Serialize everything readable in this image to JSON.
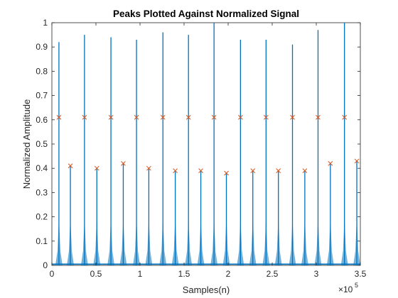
{
  "chart_data": {
    "type": "line",
    "title": "Peaks Plotted Against Normalized Signal",
    "xlabel": "Samples(n)",
    "ylabel": "Normalized Amplitude",
    "x_exponent_label": "×10",
    "x_exponent_power": "5",
    "xlim": [
      0,
      3.5
    ],
    "ylim": [
      0,
      1
    ],
    "x_scale_factor": 100000,
    "x_ticks": [
      0,
      0.5,
      1,
      1.5,
      2,
      2.5,
      3,
      3.5
    ],
    "x_tick_labels": [
      "0",
      "0.5",
      "1",
      "1.5",
      "2",
      "2.5",
      "3",
      "3.5"
    ],
    "y_ticks": [
      0,
      0.1,
      0.2,
      0.3,
      0.4,
      0.5,
      0.6,
      0.7,
      0.8,
      0.9,
      1
    ],
    "y_tick_labels": [
      "0",
      "0.1",
      "0.2",
      "0.3",
      "0.4",
      "0.5",
      "0.6",
      "0.7",
      "0.8",
      "0.9",
      "1"
    ],
    "grid": false,
    "series": [
      {
        "kind": "signal",
        "color": "#0072BD",
        "spikes": [
          {
            "x": 0.08,
            "y": 0.92
          },
          {
            "x": 0.21,
            "y": 0.41
          },
          {
            "x": 0.37,
            "y": 0.95
          },
          {
            "x": 0.51,
            "y": 0.4
          },
          {
            "x": 0.67,
            "y": 0.94
          },
          {
            "x": 0.81,
            "y": 0.42
          },
          {
            "x": 0.96,
            "y": 0.93
          },
          {
            "x": 1.1,
            "y": 0.4
          },
          {
            "x": 1.26,
            "y": 0.96
          },
          {
            "x": 1.4,
            "y": 0.39
          },
          {
            "x": 1.55,
            "y": 0.95
          },
          {
            "x": 1.69,
            "y": 0.39
          },
          {
            "x": 1.84,
            "y": 1.0
          },
          {
            "x": 1.98,
            "y": 0.38
          },
          {
            "x": 2.14,
            "y": 0.93
          },
          {
            "x": 2.28,
            "y": 0.39
          },
          {
            "x": 2.43,
            "y": 0.93
          },
          {
            "x": 2.57,
            "y": 0.39
          },
          {
            "x": 2.73,
            "y": 0.91
          },
          {
            "x": 2.87,
            "y": 0.39
          },
          {
            "x": 3.02,
            "y": 0.97
          },
          {
            "x": 3.16,
            "y": 0.42
          },
          {
            "x": 3.32,
            "y": 1.0
          },
          {
            "x": 3.46,
            "y": 0.43
          }
        ]
      },
      {
        "kind": "peaks",
        "marker": "x",
        "color": "#D95319",
        "points": [
          {
            "x": 0.08,
            "y": 0.61
          },
          {
            "x": 0.21,
            "y": 0.41
          },
          {
            "x": 0.37,
            "y": 0.61
          },
          {
            "x": 0.51,
            "y": 0.4
          },
          {
            "x": 0.67,
            "y": 0.61
          },
          {
            "x": 0.81,
            "y": 0.42
          },
          {
            "x": 0.96,
            "y": 0.61
          },
          {
            "x": 1.1,
            "y": 0.4
          },
          {
            "x": 1.26,
            "y": 0.61
          },
          {
            "x": 1.4,
            "y": 0.39
          },
          {
            "x": 1.55,
            "y": 0.61
          },
          {
            "x": 1.69,
            "y": 0.39
          },
          {
            "x": 1.84,
            "y": 0.61
          },
          {
            "x": 1.98,
            "y": 0.38
          },
          {
            "x": 2.14,
            "y": 0.61
          },
          {
            "x": 2.28,
            "y": 0.39
          },
          {
            "x": 2.43,
            "y": 0.61
          },
          {
            "x": 2.57,
            "y": 0.39
          },
          {
            "x": 2.73,
            "y": 0.61
          },
          {
            "x": 2.87,
            "y": 0.39
          },
          {
            "x": 3.02,
            "y": 0.61
          },
          {
            "x": 3.16,
            "y": 0.42
          },
          {
            "x": 3.32,
            "y": 0.61
          },
          {
            "x": 3.46,
            "y": 0.43
          }
        ]
      }
    ]
  }
}
